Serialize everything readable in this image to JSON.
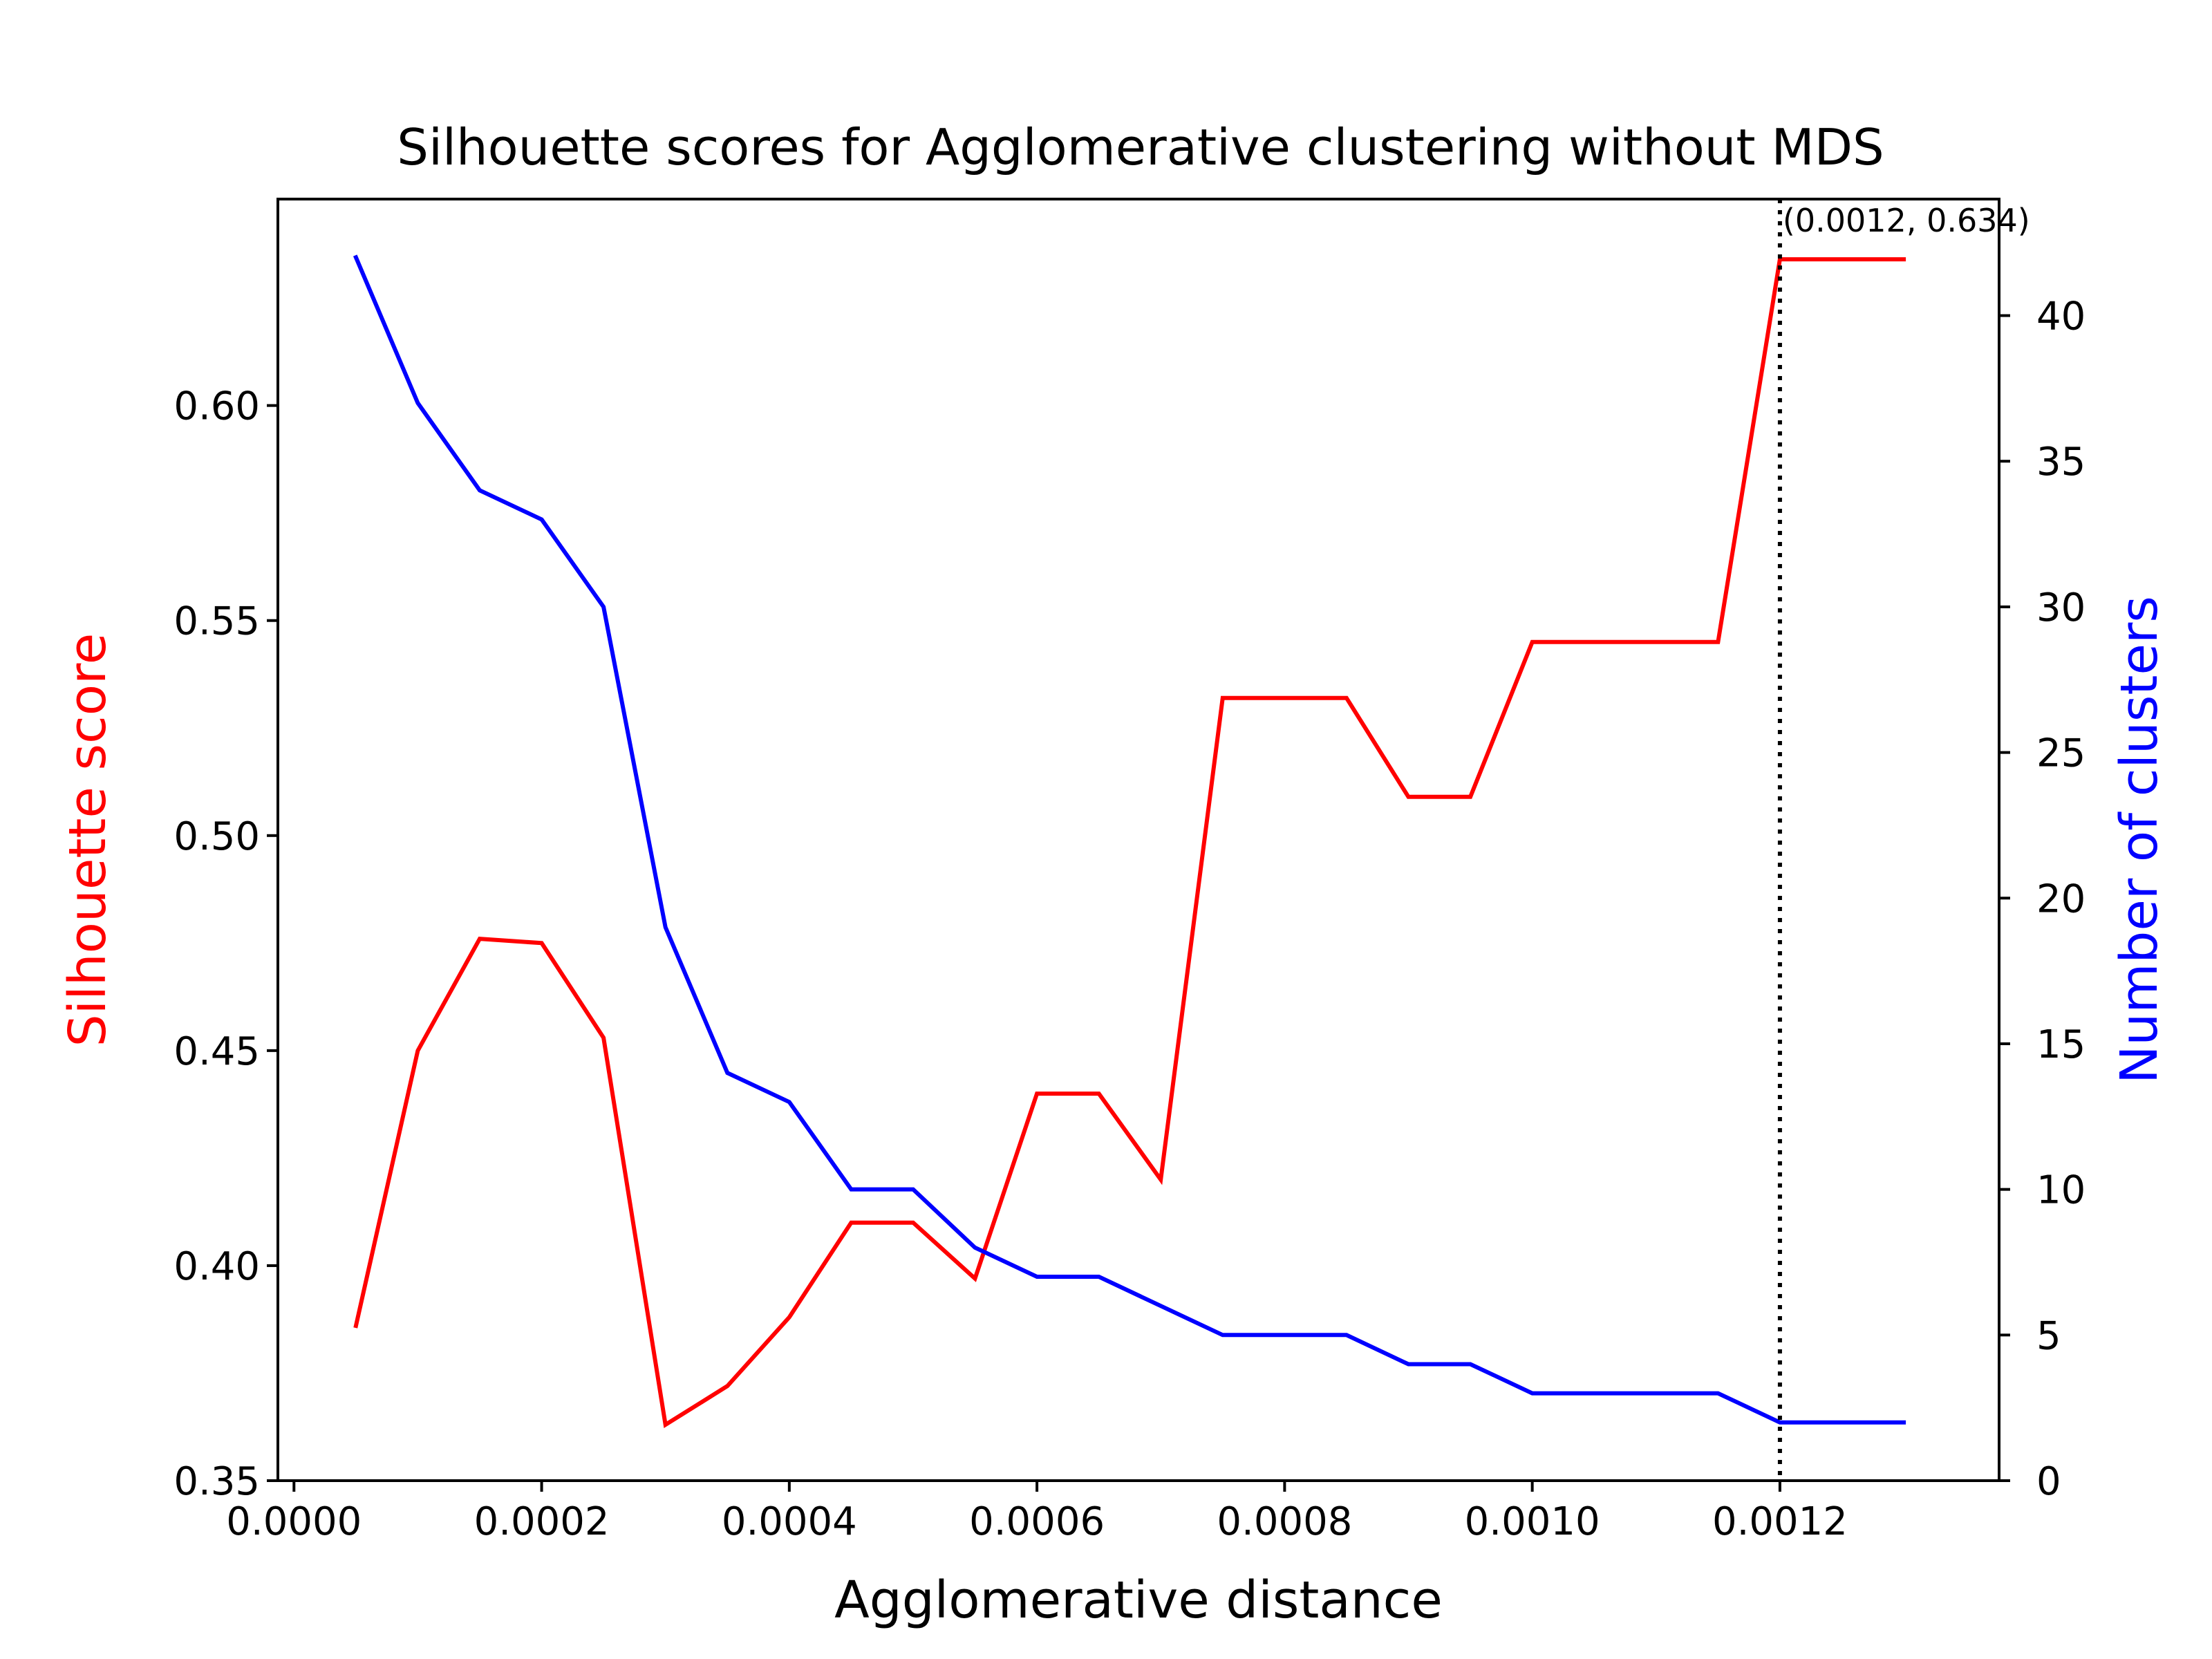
{
  "chart_data": {
    "type": "line",
    "title": "Silhouette scores for Agglomerative clustering without MDS",
    "xlabel": "Agglomerative distance",
    "ylabel_left": "Silhouette score",
    "ylabel_right": "Number of clusters",
    "xlim": [
      -1.3e-05,
      0.001377
    ],
    "ylim_left": [
      0.35,
      0.648
    ],
    "ylim_right": [
      0,
      44
    ],
    "xticks": [
      "0.0000",
      "0.0002",
      "0.0004",
      "0.0006",
      "0.0008",
      "0.0010",
      "0.0012"
    ],
    "xtick_values": [
      0,
      0.0002,
      0.0004,
      0.0006,
      0.0008,
      0.001,
      0.0012
    ],
    "yticks_left": [
      "0.35",
      "0.40",
      "0.45",
      "0.50",
      "0.55",
      "0.60"
    ],
    "ytick_left_values": [
      0.35,
      0.4,
      0.45,
      0.5,
      0.55,
      0.6
    ],
    "yticks_right": [
      "0",
      "5",
      "10",
      "15",
      "20",
      "25",
      "30",
      "35",
      "40"
    ],
    "ytick_right_values": [
      0,
      5,
      10,
      15,
      20,
      25,
      30,
      35,
      40
    ],
    "x": [
      5e-05,
      0.0001,
      0.00015,
      0.0002,
      0.00025,
      0.0003,
      0.00035,
      0.0004,
      0.00045,
      0.0005,
      0.00055,
      0.0006,
      0.00065,
      0.0007,
      0.00075,
      0.0008,
      0.00085,
      0.0009,
      0.00095,
      0.001,
      0.00105,
      0.0011,
      0.00115,
      0.0012,
      0.00125,
      0.0013
    ],
    "series": [
      {
        "name": "Silhouette score",
        "axis": "left",
        "color": "#ff0000",
        "values": [
          0.386,
          0.45,
          0.476,
          0.475,
          0.453,
          0.363,
          0.372,
          0.388,
          0.41,
          0.41,
          0.397,
          0.44,
          0.44,
          0.42,
          0.532,
          0.532,
          0.532,
          0.509,
          0.509,
          0.545,
          0.545,
          0.545,
          0.545,
          0.634,
          0.634,
          0.634
        ]
      },
      {
        "name": "Number of clusters",
        "axis": "right",
        "color": "#0000ff",
        "values": [
          42,
          37,
          34,
          33,
          30,
          19,
          14,
          13,
          10,
          10,
          8,
          7,
          7,
          6,
          5,
          5,
          5,
          4,
          4,
          3,
          3,
          3,
          3,
          2,
          2,
          2
        ]
      }
    ],
    "vline": {
      "x": 0.0012,
      "style": "dotted",
      "color": "#000000"
    },
    "annotation": {
      "text": "(0.0012, 0.634)",
      "x": 0.0012,
      "y": 0.634
    },
    "grid": false
  }
}
